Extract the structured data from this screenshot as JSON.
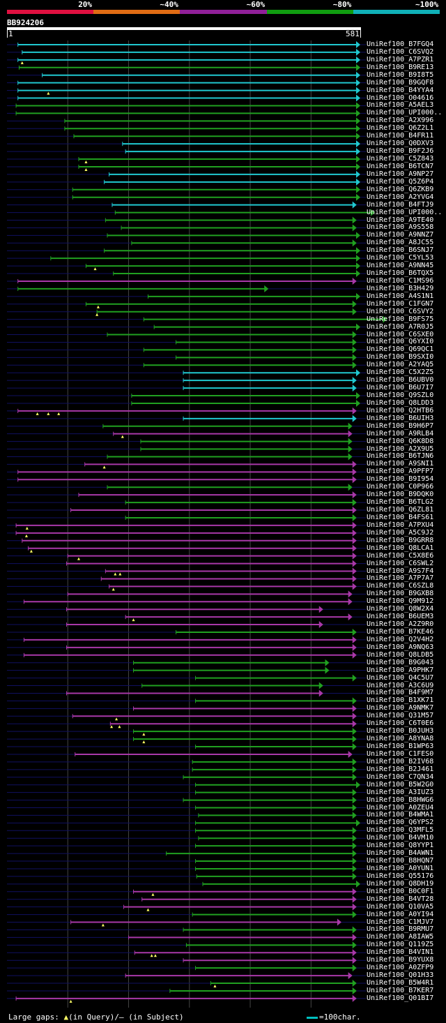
{
  "legend": {
    "segments": [
      {
        "label": "20%",
        "color": "#e01040"
      },
      {
        "label": "~40%",
        "color": "#e06c14"
      },
      {
        "label": "~60%",
        "color": "#902098"
      },
      {
        "label": "~80%",
        "color": "#109c10"
      },
      {
        "label": "~100%",
        "color": "#10b0b8"
      }
    ]
  },
  "query": {
    "id": "BB924206",
    "start": "1",
    "end": "581"
  },
  "colors": {
    "cyan": "#20c8d0",
    "green": "#20a020",
    "magenta": "#a838a8",
    "grid": "#444444",
    "row_line": "#101060"
  },
  "hits": [
    {
      "id": "UniRef100_B7FGQ4",
      "color": "cyan",
      "start": 18,
      "end": 581,
      "gaps": [],
      "qgaps": []
    },
    {
      "id": "UniRef100_C6SVQ2",
      "color": "cyan",
      "start": 25,
      "end": 581,
      "gaps": [],
      "qgaps": []
    },
    {
      "id": "UniRef100_A7PZR1",
      "color": "cyan",
      "start": 18,
      "end": 581,
      "gaps": [],
      "qgaps": [
        25
      ]
    },
    {
      "id": "UniRef100_B9RE13",
      "color": "green",
      "start": 20,
      "end": 581,
      "gaps": [],
      "qgaps": []
    },
    {
      "id": "UniRef100_B9I8T5",
      "color": "cyan",
      "start": 58,
      "end": 581,
      "gaps": [],
      "qgaps": []
    },
    {
      "id": "UniRef100_B9GQF8",
      "color": "cyan",
      "start": 18,
      "end": 581,
      "gaps": [],
      "qgaps": []
    },
    {
      "id": "UniRef100_B4YYA4",
      "color": "cyan",
      "start": 18,
      "end": 581,
      "gaps": [],
      "qgaps": [
        68
      ]
    },
    {
      "id": "UniRef100_O04616",
      "color": "cyan",
      "start": 18,
      "end": 581,
      "gaps": [],
      "qgaps": []
    },
    {
      "id": "UniRef100_A5AEL3",
      "color": "green",
      "start": 15,
      "end": 581,
      "gaps": [],
      "qgaps": []
    },
    {
      "id": "UniRef100_UPI000..",
      "color": "green",
      "start": 15,
      "end": 581,
      "gaps": [],
      "qgaps": []
    },
    {
      "id": "UniRef100_A2X996",
      "color": "green",
      "start": 95,
      "end": 581,
      "gaps": [],
      "qgaps": []
    },
    {
      "id": "UniRef100_Q6Z2L1",
      "color": "green",
      "start": 95,
      "end": 581,
      "gaps": [],
      "qgaps": []
    },
    {
      "id": "UniRef100_B4FR11",
      "color": "green",
      "start": 110,
      "end": 581,
      "gaps": [],
      "qgaps": []
    },
    {
      "id": "UniRef100_Q0DXV3",
      "color": "cyan",
      "start": 190,
      "end": 581,
      "gaps": [],
      "qgaps": []
    },
    {
      "id": "UniRef100_B9F2J6",
      "color": "cyan",
      "start": 195,
      "end": 581,
      "gaps": [],
      "qgaps": []
    },
    {
      "id": "UniRef100_C5Z843",
      "color": "green",
      "start": 118,
      "end": 581,
      "gaps": [],
      "qgaps": [
        130
      ]
    },
    {
      "id": "UniRef100_B6TCN7",
      "color": "green",
      "start": 118,
      "end": 581,
      "gaps": [],
      "qgaps": [
        130
      ]
    },
    {
      "id": "UniRef100_A9NP27",
      "color": "cyan",
      "start": 168,
      "end": 581,
      "gaps": [],
      "qgaps": []
    },
    {
      "id": "UniRef100_Q5Z6P4",
      "color": "cyan",
      "start": 160,
      "end": 581,
      "gaps": [],
      "qgaps": []
    },
    {
      "id": "UniRef100_Q6ZKB9",
      "color": "green",
      "start": 108,
      "end": 581,
      "gaps": [],
      "qgaps": []
    },
    {
      "id": "UniRef100_A2YVG4",
      "color": "green",
      "start": 108,
      "end": 581,
      "gaps": [],
      "qgaps": []
    },
    {
      "id": "UniRef100_B4FTJ9",
      "color": "cyan",
      "start": 173,
      "end": 575,
      "gaps": [],
      "qgaps": []
    },
    {
      "id": "UniRef100_UPI000..",
      "color": "green",
      "start": 178,
      "end": 605,
      "gaps": [],
      "qgaps": []
    },
    {
      "id": "UniRef100_A9TE40",
      "color": "green",
      "start": 162,
      "end": 575,
      "gaps": [],
      "qgaps": []
    },
    {
      "id": "UniRef100_A9S558",
      "color": "green",
      "start": 188,
      "end": 575,
      "gaps": [],
      "qgaps": []
    },
    {
      "id": "UniRef100_A9NNZ7",
      "color": "green",
      "start": 165,
      "end": 581,
      "gaps": [],
      "qgaps": []
    },
    {
      "id": "UniRef100_A8JC55",
      "color": "green",
      "start": 205,
      "end": 575,
      "gaps": [],
      "qgaps": []
    },
    {
      "id": "UniRef100_B6SNJ7",
      "color": "green",
      "start": 160,
      "end": 581,
      "gaps": [],
      "qgaps": []
    },
    {
      "id": "UniRef100_C5YL53",
      "color": "green",
      "start": 72,
      "end": 581,
      "gaps": [],
      "qgaps": []
    },
    {
      "id": "UniRef100_A9NN45",
      "color": "green",
      "start": 130,
      "end": 581,
      "gaps": [],
      "qgaps": [
        145
      ]
    },
    {
      "id": "UniRef100_B6TQX5",
      "color": "green",
      "start": 175,
      "end": 581,
      "gaps": [],
      "qgaps": []
    },
    {
      "id": "UniRef100_C1MS96",
      "color": "magenta",
      "start": 18,
      "end": 575,
      "gaps": [],
      "qgaps": []
    },
    {
      "id": "UniRef100_B3H429",
      "color": "green",
      "start": 18,
      "end": 430,
      "gaps": [],
      "qgaps": []
    },
    {
      "id": "UniRef100_A4S1N1",
      "color": "green",
      "start": 232,
      "end": 581,
      "gaps": [],
      "qgaps": []
    },
    {
      "id": "UniRef100_C1FGN7",
      "color": "green",
      "start": 130,
      "end": 575,
      "gaps": [],
      "qgaps": [
        150
      ]
    },
    {
      "id": "UniRef100_C6SVY2",
      "color": "green",
      "start": 148,
      "end": 575,
      "gaps": [],
      "qgaps": [
        148
      ]
    },
    {
      "id": "UniRef100_B9FS75",
      "color": "green",
      "start": 225,
      "end": 625,
      "gaps": [],
      "qgaps": []
    },
    {
      "id": "UniRef100_A7R0J5",
      "color": "green",
      "start": 242,
      "end": 581,
      "gaps": [],
      "qgaps": []
    },
    {
      "id": "UniRef100_C6SXE0",
      "color": "green",
      "start": 165,
      "end": 575,
      "gaps": [],
      "qgaps": []
    },
    {
      "id": "UniRef100_Q6YXI0",
      "color": "green",
      "start": 278,
      "end": 575,
      "gaps": [],
      "qgaps": []
    },
    {
      "id": "UniRef100_Q69QC1",
      "color": "green",
      "start": 225,
      "end": 575,
      "gaps": [],
      "qgaps": []
    },
    {
      "id": "UniRef100_B9SXI0",
      "color": "green",
      "start": 278,
      "end": 575,
      "gaps": [],
      "qgaps": []
    },
    {
      "id": "UniRef100_A2YAQ5",
      "color": "green",
      "start": 225,
      "end": 575,
      "gaps": [],
      "qgaps": []
    },
    {
      "id": "UniRef100_C5X2Z5",
      "color": "cyan",
      "start": 290,
      "end": 581,
      "gaps": [],
      "qgaps": []
    },
    {
      "id": "UniRef100_B6UBV0",
      "color": "cyan",
      "start": 290,
      "end": 575,
      "gaps": [],
      "qgaps": []
    },
    {
      "id": "UniRef100_B6U7I7",
      "color": "cyan",
      "start": 290,
      "end": 575,
      "gaps": [],
      "qgaps": []
    },
    {
      "id": "UniRef100_Q9SZL0",
      "color": "green",
      "start": 205,
      "end": 581,
      "gaps": [],
      "qgaps": []
    },
    {
      "id": "UniRef100_Q8LDD3",
      "color": "green",
      "start": 205,
      "end": 581,
      "gaps": [],
      "qgaps": []
    },
    {
      "id": "UniRef100_Q2HTB6",
      "color": "magenta",
      "start": 18,
      "end": 575,
      "gaps": [],
      "qgaps": [
        50,
        68,
        85
      ]
    },
    {
      "id": "UniRef100_B6UIH3",
      "color": "cyan",
      "start": 290,
      "end": 575,
      "gaps": [],
      "qgaps": []
    },
    {
      "id": "UniRef100_B9H6P7",
      "color": "green",
      "start": 158,
      "end": 568,
      "gaps": [],
      "qgaps": []
    },
    {
      "id": "UniRef100_A9RLB4",
      "color": "magenta",
      "start": 175,
      "end": 568,
      "gaps": [],
      "qgaps": [
        190
      ]
    },
    {
      "id": "UniRef100_Q6K8D8",
      "color": "green",
      "start": 220,
      "end": 568,
      "gaps": [],
      "qgaps": []
    },
    {
      "id": "UniRef100_A2X9U5",
      "color": "green",
      "start": 220,
      "end": 568,
      "gaps": [],
      "qgaps": []
    },
    {
      "id": "UniRef100_B6TJN6",
      "color": "green",
      "start": 165,
      "end": 568,
      "gaps": [],
      "qgaps": []
    },
    {
      "id": "UniRef100_A9SNI1",
      "color": "magenta",
      "start": 128,
      "end": 575,
      "gaps": [],
      "qgaps": [
        160
      ]
    },
    {
      "id": "UniRef100_A9PFP7",
      "color": "magenta",
      "start": 18,
      "end": 575,
      "gaps": [],
      "qgaps": []
    },
    {
      "id": "UniRef100_B9I954",
      "color": "magenta",
      "start": 18,
      "end": 575,
      "gaps": [],
      "qgaps": []
    },
    {
      "id": "UniRef100_C0P966",
      "color": "green",
      "start": 165,
      "end": 568,
      "gaps": [],
      "qgaps": []
    },
    {
      "id": "UniRef100_B9DQK0",
      "color": "magenta",
      "start": 118,
      "end": 575,
      "gaps": [],
      "qgaps": []
    },
    {
      "id": "UniRef100_B6TLG2",
      "color": "green",
      "start": 195,
      "end": 575,
      "gaps": [],
      "qgaps": []
    },
    {
      "id": "UniRef100_Q6ZL81",
      "color": "magenta",
      "start": 105,
      "end": 575,
      "gaps": [],
      "qgaps": []
    },
    {
      "id": "UniRef100_B4FS61",
      "color": "green",
      "start": 195,
      "end": 575,
      "gaps": [],
      "qgaps": []
    },
    {
      "id": "UniRef100_A7PXU4",
      "color": "magenta",
      "start": 15,
      "end": 575,
      "gaps": [],
      "qgaps": [
        33
      ]
    },
    {
      "id": "UniRef100_A5C9J2",
      "color": "magenta",
      "start": 15,
      "end": 575,
      "gaps": [],
      "qgaps": [
        32
      ]
    },
    {
      "id": "UniRef100_B9GRR8",
      "color": "magenta",
      "start": 25,
      "end": 575,
      "gaps": [],
      "qgaps": []
    },
    {
      "id": "UniRef100_Q8LCA1",
      "color": "magenta",
      "start": 35,
      "end": 575,
      "gaps": [],
      "qgaps": [
        40
      ]
    },
    {
      "id": "UniRef100_C5X8E6",
      "color": "magenta",
      "start": 100,
      "end": 575,
      "gaps": [],
      "qgaps": [
        118
      ]
    },
    {
      "id": "UniRef100_C6SWL2",
      "color": "magenta",
      "start": 98,
      "end": 575,
      "gaps": [],
      "qgaps": []
    },
    {
      "id": "UniRef100_A9S7F4",
      "color": "magenta",
      "start": 162,
      "end": 575,
      "gaps": [],
      "qgaps": [
        178,
        186
      ]
    },
    {
      "id": "UniRef100_A7P7A7",
      "color": "magenta",
      "start": 155,
      "end": 575,
      "gaps": [],
      "qgaps": []
    },
    {
      "id": "UniRef100_C6SZL8",
      "color": "magenta",
      "start": 168,
      "end": 575,
      "gaps": [],
      "qgaps": [
        175
      ]
    },
    {
      "id": "UniRef100_B9GXB8",
      "color": "magenta",
      "start": 100,
      "end": 568,
      "gaps": [],
      "qgaps": []
    },
    {
      "id": "UniRef100_Q9M912",
      "color": "magenta",
      "start": 28,
      "end": 568,
      "gaps": [],
      "qgaps": []
    },
    {
      "id": "UniRef100_Q8W2X4",
      "color": "magenta",
      "start": 98,
      "end": 520,
      "gaps": [],
      "qgaps": []
    },
    {
      "id": "UniRef100_B6UEM3",
      "color": "magenta",
      "start": 195,
      "end": 568,
      "gaps": [],
      "qgaps": [
        208
      ]
    },
    {
      "id": "UniRef100_A2Z9R0",
      "color": "magenta",
      "start": 98,
      "end": 520,
      "gaps": [],
      "qgaps": []
    },
    {
      "id": "UniRef100_B7KE46",
      "color": "green",
      "start": 278,
      "end": 575,
      "gaps": [],
      "qgaps": []
    },
    {
      "id": "UniRef100_Q2V4H2",
      "color": "magenta",
      "start": 28,
      "end": 575,
      "gaps": [],
      "qgaps": []
    },
    {
      "id": "UniRef100_A9NQ63",
      "color": "magenta",
      "start": 98,
      "end": 575,
      "gaps": [],
      "qgaps": []
    },
    {
      "id": "UniRef100_Q8LDB5",
      "color": "magenta",
      "start": 28,
      "end": 575,
      "gaps": [],
      "qgaps": []
    },
    {
      "id": "UniRef100_B9G043",
      "color": "green",
      "start": 208,
      "end": 530,
      "gaps": [],
      "qgaps": []
    },
    {
      "id": "UniRef100_A9PHK7",
      "color": "green",
      "start": 208,
      "end": 530,
      "gaps": [],
      "qgaps": []
    },
    {
      "id": "UniRef100_Q4C5U7",
      "color": "green",
      "start": 310,
      "end": 575,
      "gaps": [],
      "qgaps": []
    },
    {
      "id": "UniRef100_A3C6U9",
      "color": "green",
      "start": 222,
      "end": 520,
      "gaps": [],
      "qgaps": []
    },
    {
      "id": "UniRef100_B4F9M7",
      "color": "magenta",
      "start": 98,
      "end": 520,
      "gaps": [],
      "qgaps": []
    },
    {
      "id": "UniRef100_B1XK71",
      "color": "green",
      "start": 310,
      "end": 575,
      "gaps": [],
      "qgaps": []
    },
    {
      "id": "UniRef100_A9NMK7",
      "color": "magenta",
      "start": 208,
      "end": 575,
      "gaps": [],
      "qgaps": []
    },
    {
      "id": "UniRef100_Q31M57",
      "color": "magenta",
      "start": 108,
      "end": 575,
      "gaps": [],
      "qgaps": [
        180
      ]
    },
    {
      "id": "UniRef100_C6T0E6",
      "color": "magenta",
      "start": 170,
      "end": 575,
      "gaps": [],
      "qgaps": [
        172,
        185
      ]
    },
    {
      "id": "UniRef100_B0JUH3",
      "color": "green",
      "start": 208,
      "end": 575,
      "gaps": [],
      "qgaps": [
        225
      ]
    },
    {
      "id": "UniRef100_A8YNA8",
      "color": "green",
      "start": 208,
      "end": 575,
      "gaps": [],
      "qgaps": [
        225
      ]
    },
    {
      "id": "UniRef100_B1WP63",
      "color": "green",
      "start": 310,
      "end": 575,
      "gaps": [],
      "qgaps": []
    },
    {
      "id": "UniRef100_C1FES0",
      "color": "magenta",
      "start": 112,
      "end": 568,
      "gaps": [],
      "qgaps": []
    },
    {
      "id": "UniRef100_B2IV68",
      "color": "green",
      "start": 305,
      "end": 575,
      "gaps": [],
      "qgaps": []
    },
    {
      "id": "UniRef100_B2J461",
      "color": "green",
      "start": 305,
      "end": 575,
      "gaps": [],
      "qgaps": []
    },
    {
      "id": "UniRef100_C7QN34",
      "color": "green",
      "start": 290,
      "end": 575,
      "gaps": [],
      "qgaps": []
    },
    {
      "id": "UniRef100_B5W2G0",
      "color": "green",
      "start": 310,
      "end": 581,
      "gaps": [],
      "qgaps": []
    },
    {
      "id": "UniRef100_A3IUZ3",
      "color": "green",
      "start": 310,
      "end": 575,
      "gaps": [],
      "qgaps": []
    },
    {
      "id": "UniRef100_B8HWG6",
      "color": "green",
      "start": 290,
      "end": 575,
      "gaps": [],
      "qgaps": []
    },
    {
      "id": "UniRef100_A0ZEU4",
      "color": "green",
      "start": 310,
      "end": 575,
      "gaps": [],
      "qgaps": []
    },
    {
      "id": "UniRef100_B4WMA1",
      "color": "green",
      "start": 315,
      "end": 575,
      "gaps": [],
      "qgaps": []
    },
    {
      "id": "UniRef100_Q6YPS2",
      "color": "green",
      "start": 310,
      "end": 581,
      "gaps": [],
      "qgaps": []
    },
    {
      "id": "UniRef100_Q3MFL5",
      "color": "green",
      "start": 310,
      "end": 575,
      "gaps": [],
      "qgaps": []
    },
    {
      "id": "UniRef100_B4VM10",
      "color": "green",
      "start": 315,
      "end": 575,
      "gaps": [],
      "qgaps": []
    },
    {
      "id": "UniRef100_Q8YYP1",
      "color": "green",
      "start": 310,
      "end": 575,
      "gaps": [],
      "qgaps": []
    },
    {
      "id": "UniRef100_B4AWN1",
      "color": "green",
      "start": 262,
      "end": 575,
      "gaps": [],
      "qgaps": []
    },
    {
      "id": "UniRef100_B8HQN7",
      "color": "green",
      "start": 310,
      "end": 575,
      "gaps": [],
      "qgaps": []
    },
    {
      "id": "UniRef100_A0YUN1",
      "color": "green",
      "start": 310,
      "end": 575,
      "gaps": [],
      "qgaps": []
    },
    {
      "id": "UniRef100_Q55176",
      "color": "green",
      "start": 312,
      "end": 575,
      "gaps": [],
      "qgaps": []
    },
    {
      "id": "UniRef100_Q8DH19",
      "color": "green",
      "start": 322,
      "end": 581,
      "gaps": [],
      "qgaps": []
    },
    {
      "id": "UniRef100_B0C0F1",
      "color": "magenta",
      "start": 208,
      "end": 575,
      "gaps": [],
      "qgaps": [
        240
      ]
    },
    {
      "id": "UniRef100_B4VT28",
      "color": "magenta",
      "start": 222,
      "end": 575,
      "gaps": [],
      "qgaps": []
    },
    {
      "id": "UniRef100_Q10VA5",
      "color": "magenta",
      "start": 192,
      "end": 575,
      "gaps": [],
      "qgaps": [
        232
      ]
    },
    {
      "id": "UniRef100_A0YI94",
      "color": "green",
      "start": 305,
      "end": 575,
      "gaps": [],
      "qgaps": []
    },
    {
      "id": "UniRef100_C1MJV7",
      "color": "magenta",
      "start": 105,
      "end": 550,
      "gaps": [],
      "qgaps": [
        158
      ]
    },
    {
      "id": "UniRef100_B9RMU7",
      "color": "green",
      "start": 290,
      "end": 575,
      "gaps": [],
      "qgaps": []
    },
    {
      "id": "UniRef100_A8IAW5",
      "color": "magenta",
      "start": 200,
      "end": 575,
      "gaps": [],
      "qgaps": []
    },
    {
      "id": "UniRef100_Q119Z5",
      "color": "green",
      "start": 295,
      "end": 575,
      "gaps": [],
      "qgaps": []
    },
    {
      "id": "UniRef100_B4VIN1",
      "color": "magenta",
      "start": 210,
      "end": 575,
      "gaps": [],
      "qgaps": [
        238,
        244
      ]
    },
    {
      "id": "UniRef100_B9YUX8",
      "color": "magenta",
      "start": 290,
      "end": 575,
      "gaps": [],
      "qgaps": []
    },
    {
      "id": "UniRef100_A0ZFP9",
      "color": "green",
      "start": 310,
      "end": 575,
      "gaps": [],
      "qgaps": []
    },
    {
      "id": "UniRef100_Q01H33",
      "color": "magenta",
      "start": 195,
      "end": 568,
      "gaps": [],
      "qgaps": []
    },
    {
      "id": "UniRef100_B5W4R1",
      "color": "green",
      "start": 335,
      "end": 575,
      "gaps": [],
      "qgaps": [
        342
      ]
    },
    {
      "id": "UniRef100_B7KER7",
      "color": "green",
      "start": 268,
      "end": 575,
      "gaps": [],
      "qgaps": []
    },
    {
      "id": "UniRef100_Q01BI7",
      "color": "magenta",
      "start": 15,
      "end": 575,
      "gaps": [],
      "qgaps": [
        105
      ]
    }
  ],
  "footer": {
    "text_pre": "Large gaps: ",
    "text_mid": "(in Query)/– (in Subject)",
    "scale_label": "=100char."
  }
}
